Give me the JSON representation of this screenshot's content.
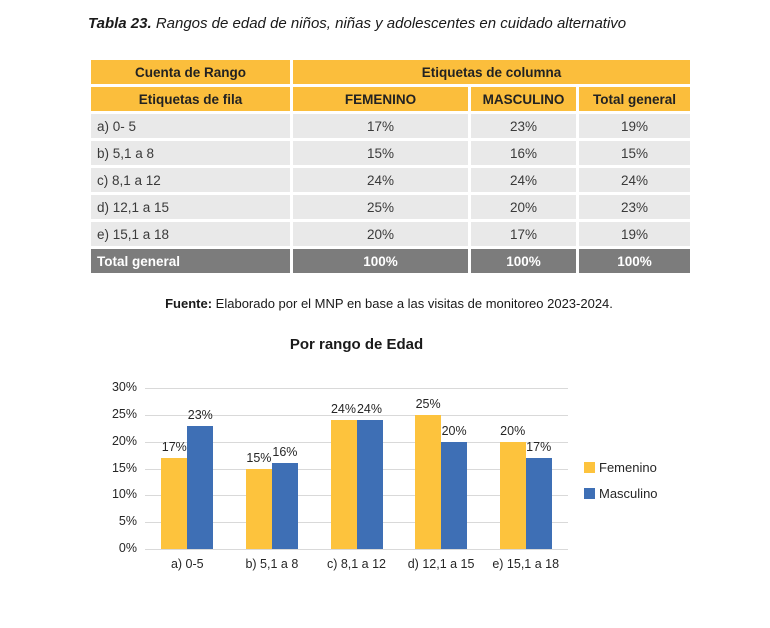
{
  "doc": {
    "title_prefix": "Tabla 23.",
    "title_rest": "Rangos de edad de niños, niñas y adolescentes en cuidado alternativo"
  },
  "table": {
    "header": {
      "corner": "Cuenta de Rango",
      "col_group": "Etiquetas de columna",
      "row_label": "Etiquetas de fila",
      "columns": [
        "FEMENINO",
        "MASCULINO",
        "Total general"
      ]
    },
    "rows": [
      {
        "label": "a) 0- 5",
        "values": [
          "17%",
          "23%",
          "19%"
        ]
      },
      {
        "label": "b) 5,1 a 8",
        "values": [
          "15%",
          "16%",
          "15%"
        ]
      },
      {
        "label": "c) 8,1 a 12",
        "values": [
          "24%",
          "24%",
          "24%"
        ]
      },
      {
        "label": "d) 12,1 a 15",
        "values": [
          "25%",
          "20%",
          "23%"
        ]
      },
      {
        "label": "e) 15,1 a 18",
        "values": [
          "20%",
          "17%",
          "19%"
        ]
      }
    ],
    "total": {
      "label": "Total general",
      "values": [
        "100%",
        "100%",
        "100%"
      ]
    }
  },
  "source": {
    "prefix": "Fuente:",
    "text": "Elaborado por el MNP en base a las visitas de monitoreo 2023-2024."
  },
  "chart_data": {
    "type": "bar",
    "title": "Por rango de Edad",
    "categories": [
      "a) 0-5",
      "b) 5,1 a 8",
      "c) 8,1 a 12",
      "d) 12,1 a 15",
      "e) 15,1 a 18"
    ],
    "series": [
      {
        "name": "Femenino",
        "color": "#FDC33D",
        "values": [
          17,
          15,
          24,
          25,
          20
        ]
      },
      {
        "name": "Masculino",
        "color": "#3E6FB5",
        "values": [
          23,
          16,
          24,
          20,
          17
        ]
      }
    ],
    "ylim": [
      0,
      30
    ],
    "ytick_step": 5,
    "ytick_format": "percent",
    "grid": true,
    "legend_position": "right",
    "data_labels": true,
    "data_label_format": "{v}%"
  },
  "colors": {
    "header_bg": "#FBBE3C",
    "row_bg": "#E9E9E9",
    "total_bg": "#7C7C7C",
    "gridline": "#D9D9D9",
    "femenino": "#FDC33D",
    "masculino": "#3E6FB5"
  }
}
